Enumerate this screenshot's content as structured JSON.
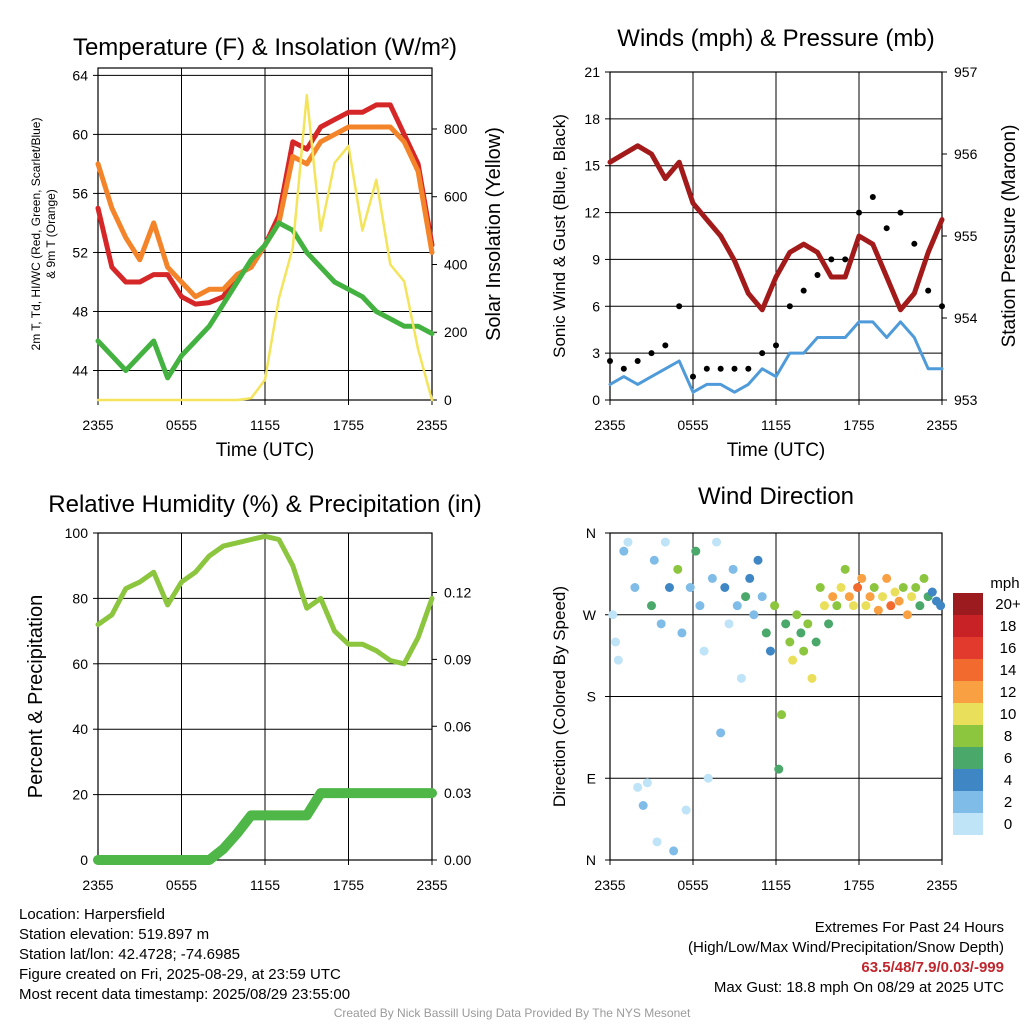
{
  "location_label": "Location: Harpersfield",
  "elevation_label": "Station elevation: 519.897 m",
  "latlon_label": "Station lat/lon: 42.4728; -74.6985",
  "created_label": "Figure created on Fri, 2025-08-29, at 23:59 UTC",
  "recent_label": "Most recent data timestamp: 2025/08/29 23:55:00",
  "extremes": {
    "title": "Extremes For Past 24 Hours",
    "subtitle": "(High/Low/Max Wind/Precipitation/Snow Depth)",
    "values": "63.5/48/7.9/0.03/-999",
    "max_gust": "Max Gust: 18.8 mph On 08/29 at 2025 UTC"
  },
  "credit": "Created By Nick Bassill Using Data Provided By The NYS Mesonet",
  "colors": {
    "temp_red": "#d62728",
    "temp_orange": "#f4842a",
    "dewpoint_green": "#44b240",
    "insolation_yellow": "#f3e45c",
    "wind_blue": "#4f9bd9",
    "pressure_maroon": "#a31a1a",
    "rh_green": "#8cc63f",
    "precip_green": "#4fb747"
  },
  "chart_data": [
    {
      "type": "line",
      "title": "Temperature (F) & Insolation (W/m²)",
      "xlabel": "Time (UTC)",
      "ylabel": "2m T, Td, HI/WC (Red, Green, Scarlet/Blue) & 9m T (Orange)",
      "ylabel_right": "Solar Insolation (Yellow)",
      "x_ticks": [
        "2355",
        "0555",
        "1155",
        "1755",
        "2355"
      ],
      "y_ticks": [
        44,
        48,
        52,
        56,
        60,
        64
      ],
      "y_ticks_right": [
        0,
        200,
        400,
        600,
        800
      ],
      "ylim": [
        42,
        64.5
      ],
      "ylim_right": [
        0,
        980
      ],
      "x_hours": [
        0,
        1,
        2,
        3,
        4,
        5,
        6,
        7,
        8,
        9,
        10,
        11,
        12,
        13,
        14,
        15,
        16,
        17,
        18,
        19,
        20,
        21,
        22,
        23,
        24
      ],
      "series": [
        {
          "name": "2m T",
          "color": "red",
          "axis": "left",
          "values": [
            55,
            51,
            50,
            50,
            50.5,
            50.5,
            49,
            48.5,
            48.6,
            49,
            50.5,
            51,
            52.5,
            54.5,
            59.5,
            59,
            60.5,
            61,
            61.5,
            61.5,
            62,
            62,
            60,
            58,
            52.5
          ]
        },
        {
          "name": "9m T",
          "color": "orange",
          "axis": "left",
          "values": [
            58,
            55,
            53,
            51.5,
            54,
            51,
            50,
            49,
            49.5,
            49.5,
            50.5,
            51,
            52.5,
            54,
            58.5,
            58,
            59.5,
            60,
            60.5,
            60.5,
            60.5,
            60.5,
            59.5,
            57.5,
            52
          ]
        },
        {
          "name": "Td",
          "color": "green",
          "axis": "left",
          "values": [
            46,
            45,
            44,
            45,
            46,
            43.5,
            45,
            46,
            47,
            48.5,
            50,
            51.5,
            52.5,
            54,
            53.5,
            52,
            51,
            50,
            49.5,
            49,
            48,
            47.5,
            47,
            47,
            46.5
          ]
        },
        {
          "name": "Insolation",
          "color": "yellow",
          "axis": "right",
          "values": [
            0,
            0,
            0,
            0,
            0,
            0,
            0,
            0,
            0,
            0,
            0,
            5,
            60,
            300,
            450,
            900,
            500,
            700,
            750,
            500,
            650,
            400,
            350,
            150,
            0
          ]
        }
      ]
    },
    {
      "type": "line",
      "title": "Winds (mph) & Pressure (mb)",
      "xlabel": "Time (UTC)",
      "ylabel": "Sonic Wind & Gust (Blue, Black)",
      "ylabel_right": "Station Pressure (Maroon)",
      "x_ticks": [
        "2355",
        "0555",
        "1155",
        "1755",
        "2355"
      ],
      "y_ticks": [
        0,
        3,
        6,
        9,
        12,
        15,
        18,
        21
      ],
      "y_ticks_right": [
        953,
        954,
        955,
        956,
        957
      ],
      "ylim": [
        0,
        21
      ],
      "ylim_right": [
        953,
        957
      ],
      "x_hours": [
        0,
        1,
        2,
        3,
        4,
        5,
        6,
        7,
        8,
        9,
        10,
        11,
        12,
        13,
        14,
        15,
        16,
        17,
        18,
        19,
        20,
        21,
        22,
        23,
        24
      ],
      "series": [
        {
          "name": "Sonic Wind",
          "color": "blue",
          "axis": "left",
          "values": [
            1,
            1.5,
            1,
            1.5,
            2,
            2.5,
            0.5,
            1,
            1,
            0.5,
            1,
            2,
            1.5,
            3,
            3,
            4,
            4,
            4,
            5,
            5,
            4,
            5,
            4,
            2,
            2
          ]
        },
        {
          "name": "Gust",
          "color": "black",
          "axis": "left",
          "values": [
            2.5,
            2,
            2.5,
            3,
            3.5,
            6,
            1.5,
            2,
            2,
            2,
            2,
            3,
            3.5,
            6,
            7,
            8,
            9,
            9,
            12,
            13,
            11,
            12,
            10,
            7,
            6
          ]
        },
        {
          "name": "Station Pressure",
          "color": "maroon",
          "axis": "right",
          "values": [
            955.9,
            956,
            956.1,
            956,
            955.7,
            955.9,
            955.4,
            955.2,
            955,
            954.7,
            954.3,
            954.1,
            954.5,
            954.8,
            954.9,
            954.8,
            954.5,
            954.5,
            955,
            954.9,
            954.5,
            954.1,
            954.3,
            954.8,
            955.2
          ]
        }
      ]
    },
    {
      "type": "line",
      "title": "Relative Humidity (%) & Precipitation (in)",
      "xlabel": "",
      "ylabel": "Percent & Precipitation",
      "x_ticks": [
        "2355",
        "0555",
        "1155",
        "1755",
        "2355"
      ],
      "y_ticks": [
        0,
        20,
        40,
        60,
        80,
        100
      ],
      "y_ticks_right": [
        0.0,
        0.03,
        0.06,
        0.09,
        0.12
      ],
      "ylim": [
        0,
        100
      ],
      "ylim_right": [
        0,
        0.1467
      ],
      "x_hours": [
        0,
        1,
        2,
        3,
        4,
        5,
        6,
        7,
        8,
        9,
        10,
        11,
        12,
        13,
        14,
        15,
        16,
        17,
        18,
        19,
        20,
        21,
        22,
        23,
        24
      ],
      "series": [
        {
          "name": "Relative Humidity",
          "color": "rh",
          "axis": "left",
          "values": [
            72,
            75,
            83,
            85,
            88,
            78,
            85,
            88,
            93,
            96,
            97,
            98,
            99,
            98,
            90,
            77,
            80,
            70,
            66,
            66,
            64,
            61,
            60,
            68,
            80
          ]
        },
        {
          "name": "Precipitation",
          "color": "precip",
          "axis": "right",
          "values": [
            0,
            0,
            0,
            0,
            0,
            0,
            0,
            0,
            0,
            0.005,
            0.012,
            0.02,
            0.02,
            0.02,
            0.02,
            0.02,
            0.03,
            0.03,
            0.03,
            0.03,
            0.03,
            0.03,
            0.03,
            0.03,
            0.03
          ]
        }
      ]
    },
    {
      "type": "scatter",
      "title": "Wind Direction",
      "ylabel": "Direction (Colored By Speed)",
      "x_ticks": [
        "2355",
        "0555",
        "1155",
        "1755",
        "2355"
      ],
      "y_ticks": [
        "N",
        "E",
        "S",
        "W",
        "N"
      ],
      "ylim_degrees": [
        0,
        360
      ],
      "legend_title": "mph",
      "legend_labels": [
        "20+",
        "18",
        "16",
        "14",
        "12",
        "10",
        "8",
        "6",
        "4",
        "2",
        "0"
      ],
      "legend_colors": [
        "#9b1b1e",
        "#c82227",
        "#e23b2e",
        "#f26a2e",
        "#f9a142",
        "#e9df5a",
        "#8cc63f",
        "#4aa86a",
        "#3f86c4",
        "#7fbce8",
        "#bfe3f7"
      ],
      "points": [
        {
          "h": 0.2,
          "d": 270,
          "s": 0
        },
        {
          "h": 0.4,
          "d": 240,
          "s": 0
        },
        {
          "h": 0.6,
          "d": 220,
          "s": 0
        },
        {
          "h": 1.0,
          "d": 340,
          "s": 1
        },
        {
          "h": 1.3,
          "d": 350,
          "s": 0
        },
        {
          "h": 1.8,
          "d": 300,
          "s": 1
        },
        {
          "h": 2.0,
          "d": 80,
          "s": 0
        },
        {
          "h": 2.4,
          "d": 60,
          "s": 1
        },
        {
          "h": 2.7,
          "d": 85,
          "s": 0
        },
        {
          "h": 3.0,
          "d": 280,
          "s": 3
        },
        {
          "h": 3.2,
          "d": 330,
          "s": 1
        },
        {
          "h": 3.4,
          "d": 20,
          "s": 0
        },
        {
          "h": 3.7,
          "d": 260,
          "s": 1
        },
        {
          "h": 4.0,
          "d": 350,
          "s": 0
        },
        {
          "h": 4.3,
          "d": 300,
          "s": 2
        },
        {
          "h": 4.6,
          "d": 10,
          "s": 1
        },
        {
          "h": 4.9,
          "d": 320,
          "s": 4
        },
        {
          "h": 5.2,
          "d": 250,
          "s": 1
        },
        {
          "h": 5.5,
          "d": 55,
          "s": 0
        },
        {
          "h": 5.8,
          "d": 300,
          "s": 1
        },
        {
          "h": 6.2,
          "d": 340,
          "s": 3
        },
        {
          "h": 6.5,
          "d": 280,
          "s": 1
        },
        {
          "h": 6.8,
          "d": 230,
          "s": 0
        },
        {
          "h": 7.1,
          "d": 90,
          "s": 0
        },
        {
          "h": 7.4,
          "d": 310,
          "s": 1
        },
        {
          "h": 7.7,
          "d": 350,
          "s": 0
        },
        {
          "h": 8.0,
          "d": 140,
          "s": 1
        },
        {
          "h": 8.3,
          "d": 300,
          "s": 2
        },
        {
          "h": 8.6,
          "d": 260,
          "s": 0
        },
        {
          "h": 8.9,
          "d": 320,
          "s": 1
        },
        {
          "h": 9.2,
          "d": 280,
          "s": 1
        },
        {
          "h": 9.5,
          "d": 200,
          "s": 0
        },
        {
          "h": 9.8,
          "d": 290,
          "s": 3
        },
        {
          "h": 10.1,
          "d": 310,
          "s": 2
        },
        {
          "h": 10.4,
          "d": 270,
          "s": 1
        },
        {
          "h": 10.7,
          "d": 330,
          "s": 2
        },
        {
          "h": 11.0,
          "d": 290,
          "s": 1
        },
        {
          "h": 11.3,
          "d": 250,
          "s": 3
        },
        {
          "h": 11.6,
          "d": 230,
          "s": 2
        },
        {
          "h": 11.9,
          "d": 280,
          "s": 4
        },
        {
          "h": 12.2,
          "d": 100,
          "s": 3
        },
        {
          "h": 12.4,
          "d": 160,
          "s": 4
        },
        {
          "h": 12.7,
          "d": 260,
          "s": 3
        },
        {
          "h": 13.0,
          "d": 240,
          "s": 4
        },
        {
          "h": 13.2,
          "d": 220,
          "s": 5
        },
        {
          "h": 13.5,
          "d": 270,
          "s": 4
        },
        {
          "h": 13.8,
          "d": 250,
          "s": 3
        },
        {
          "h": 14.0,
          "d": 230,
          "s": 4
        },
        {
          "h": 14.3,
          "d": 260,
          "s": 4
        },
        {
          "h": 14.6,
          "d": 200,
          "s": 5
        },
        {
          "h": 14.9,
          "d": 240,
          "s": 3
        },
        {
          "h": 15.2,
          "d": 300,
          "s": 4
        },
        {
          "h": 15.5,
          "d": 280,
          "s": 5
        },
        {
          "h": 15.8,
          "d": 260,
          "s": 3
        },
        {
          "h": 16.1,
          "d": 290,
          "s": 6
        },
        {
          "h": 16.4,
          "d": 280,
          "s": 4
        },
        {
          "h": 16.7,
          "d": 300,
          "s": 5
        },
        {
          "h": 17.0,
          "d": 320,
          "s": 4
        },
        {
          "h": 17.3,
          "d": 290,
          "s": 6
        },
        {
          "h": 17.6,
          "d": 280,
          "s": 5
        },
        {
          "h": 17.9,
          "d": 300,
          "s": 7
        },
        {
          "h": 18.2,
          "d": 310,
          "s": 6
        },
        {
          "h": 18.5,
          "d": 280,
          "s": 5
        },
        {
          "h": 18.8,
          "d": 290,
          "s": 6
        },
        {
          "h": 19.1,
          "d": 300,
          "s": 4
        },
        {
          "h": 19.4,
          "d": 275,
          "s": 6
        },
        {
          "h": 19.7,
          "d": 290,
          "s": 5
        },
        {
          "h": 20.0,
          "d": 310,
          "s": 6
        },
        {
          "h": 20.3,
          "d": 280,
          "s": 7
        },
        {
          "h": 20.6,
          "d": 295,
          "s": 5
        },
        {
          "h": 20.9,
          "d": 285,
          "s": 6
        },
        {
          "h": 21.2,
          "d": 300,
          "s": 4
        },
        {
          "h": 21.5,
          "d": 270,
          "s": 6
        },
        {
          "h": 21.8,
          "d": 290,
          "s": 5
        },
        {
          "h": 22.1,
          "d": 300,
          "s": 4
        },
        {
          "h": 22.4,
          "d": 280,
          "s": 3
        },
        {
          "h": 22.7,
          "d": 310,
          "s": 4
        },
        {
          "h": 23.0,
          "d": 290,
          "s": 3
        },
        {
          "h": 23.3,
          "d": 295,
          "s": 2
        },
        {
          "h": 23.6,
          "d": 285,
          "s": 2
        },
        {
          "h": 23.9,
          "d": 280,
          "s": 2
        }
      ]
    }
  ]
}
